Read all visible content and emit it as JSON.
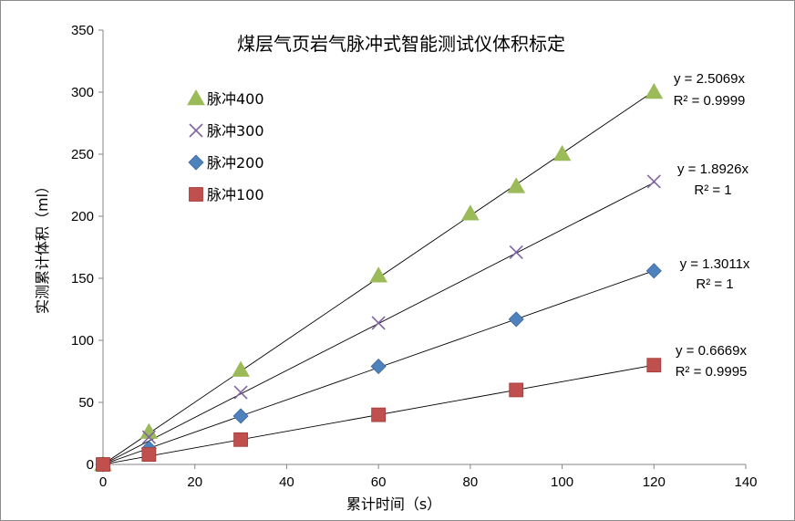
{
  "chart_data": {
    "type": "scatter",
    "title": "煤层气页岩气脉冲式智能测试仪体积标定",
    "xlabel": "累计时间（s）",
    "ylabel": "实测累计体积（ml）",
    "xlim": [
      0,
      140
    ],
    "ylim": [
      0,
      350
    ],
    "xticks": [
      "0",
      "20",
      "40",
      "60",
      "80",
      "100",
      "120",
      "140"
    ],
    "yticks": [
      "0",
      "50",
      "100",
      "150",
      "200",
      "250",
      "300",
      "350"
    ],
    "grid": false,
    "legend_position": "top-left",
    "series": [
      {
        "name": "脉冲400",
        "marker": "triangle",
        "color": "#9bbb59",
        "points": [
          [
            0,
            0
          ],
          [
            10,
            26
          ],
          [
            30,
            76
          ],
          [
            60,
            152
          ],
          [
            80,
            202
          ],
          [
            90,
            224
          ],
          [
            100,
            250
          ],
          [
            120,
            300
          ]
        ],
        "trend_slope": 2.5069,
        "eq": "y = 2.5069x",
        "r2": "R² = 0.9999"
      },
      {
        "name": "脉冲300",
        "marker": "x",
        "color": "#8064a2",
        "points": [
          [
            0,
            0
          ],
          [
            10,
            22
          ],
          [
            30,
            58
          ],
          [
            60,
            114
          ],
          [
            90,
            171
          ],
          [
            120,
            228
          ]
        ],
        "trend_slope": 1.8926,
        "eq": "y = 1.8926x",
        "r2": "R² = 1"
      },
      {
        "name": "脉冲200",
        "marker": "diamond",
        "color": "#4f81bd",
        "points": [
          [
            0,
            0
          ],
          [
            10,
            13
          ],
          [
            30,
            39
          ],
          [
            60,
            79
          ],
          [
            90,
            117
          ],
          [
            120,
            156
          ]
        ],
        "trend_slope": 1.3011,
        "eq": "y = 1.3011x",
        "r2": "R² = 1"
      },
      {
        "name": "脉冲100",
        "marker": "square",
        "color": "#c0504d",
        "points": [
          [
            0,
            0
          ],
          [
            10,
            8
          ],
          [
            30,
            20
          ],
          [
            60,
            40
          ],
          [
            90,
            60
          ],
          [
            120,
            80
          ]
        ],
        "trend_slope": 0.6669,
        "eq": "y = 0.6669x",
        "r2": "R² = 0.9995"
      }
    ]
  }
}
